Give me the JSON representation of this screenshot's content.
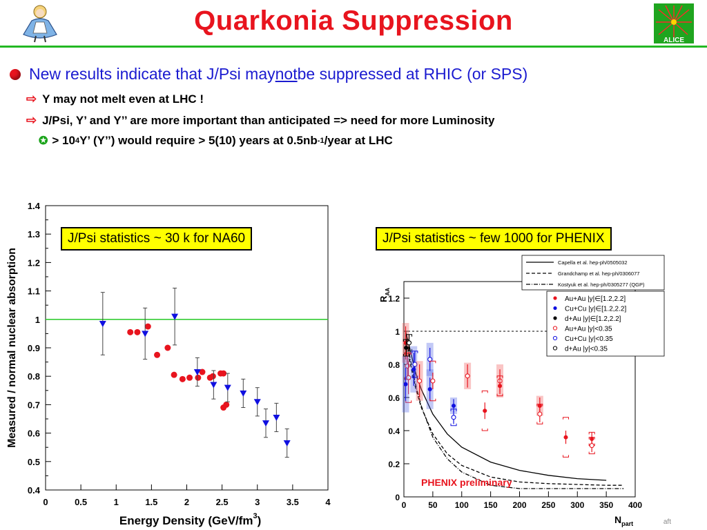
{
  "slide": {
    "title": "Quarkonia Suppression",
    "bullet_main": {
      "pre": "New results indicate that J/Psi may ",
      "emph": "not",
      "post": " be suppressed at RHIC (or SPS)"
    },
    "sub1": "Y may not melt even at LHC !",
    "sub2": "J/Psi, Y’ and Y’’ are more important than anticipated => need for more Luminosity",
    "sub3": {
      "pre": "> 10",
      "sup": "4",
      "mid": " Y’ (Y’’) would require > 5(10) years at 0.5nb",
      "sup2": "-1",
      "post": "/year at LHC"
    },
    "box_left": "J/Psi statistics ~ 30 k for NA60",
    "box_right": "J/Psi statistics ~ few 1000 for PHENIX",
    "footer": "aft",
    "logo_left_icon": "alice-girl-icon",
    "logo_right_icon": "alice-experiment-logo-icon",
    "logo_right_text": "ALICE"
  },
  "colors": {
    "title": "#e8141e",
    "rule": "#22b822",
    "bullet_text": "#1b1bd0",
    "red": "#e8141e",
    "blue": "#1010e0",
    "box": "#ffff00",
    "green_line": "#33cc33"
  },
  "chart_data": [
    {
      "type": "scatter",
      "title": "",
      "xlabel": "Energy Density (GeV/fm",
      "xlabel_sup": "3",
      "xlabel_close": ")",
      "ylabel": "Measured / normal nuclear absorption",
      "xlim": [
        0,
        4
      ],
      "ylim": [
        0.4,
        1.4
      ],
      "xticks": [
        0,
        0.5,
        1,
        1.5,
        2,
        2.5,
        3,
        3.5,
        4
      ],
      "xtick_labels": [
        "0",
        "0.5",
        "1",
        "1.5",
        "2",
        "2.5",
        "3",
        "3.5",
        "4"
      ],
      "yticks": [
        0.4,
        0.5,
        0.6,
        0.7,
        0.8,
        0.9,
        1,
        1.1,
        1.2,
        1.3,
        1.4
      ],
      "ytick_labels": [
        "0.4",
        "0.5",
        "0.6",
        "0.7",
        "0.8",
        "0.9",
        "1",
        "1.1",
        "1.2",
        "1.3",
        "1.4"
      ],
      "reference_line": 1.0,
      "series": [
        {
          "marker": "circle",
          "color": "#e8141e",
          "points": [
            {
              "x": 1.2,
              "y": 0.955,
              "err": 0
            },
            {
              "x": 1.3,
              "y": 0.955,
              "err": 0
            },
            {
              "x": 1.45,
              "y": 0.975,
              "err": 0
            },
            {
              "x": 1.58,
              "y": 0.875,
              "err": 0
            },
            {
              "x": 1.73,
              "y": 0.9,
              "err": 0
            },
            {
              "x": 1.82,
              "y": 0.805,
              "err": 0
            },
            {
              "x": 1.94,
              "y": 0.79,
              "err": 0
            },
            {
              "x": 2.04,
              "y": 0.795,
              "err": 0
            },
            {
              "x": 2.16,
              "y": 0.795,
              "err": 0
            },
            {
              "x": 2.22,
              "y": 0.815,
              "err": 0
            },
            {
              "x": 2.33,
              "y": 0.795,
              "err": 0
            },
            {
              "x": 2.37,
              "y": 0.8,
              "err": 0
            },
            {
              "x": 2.48,
              "y": 0.81,
              "err": 0
            },
            {
              "x": 2.52,
              "y": 0.81,
              "err": 0
            },
            {
              "x": 2.52,
              "y": 0.69,
              "err": 0
            },
            {
              "x": 2.56,
              "y": 0.7,
              "err": 0
            }
          ]
        },
        {
          "marker": "triangle-down",
          "color": "#1010e0",
          "points": [
            {
              "x": 0.81,
              "y": 0.985,
              "err": 0.11
            },
            {
              "x": 1.41,
              "y": 0.95,
              "err": 0.09
            },
            {
              "x": 1.83,
              "y": 1.01,
              "err": 0.1
            },
            {
              "x": 2.15,
              "y": 0.815,
              "err": 0.05
            },
            {
              "x": 2.38,
              "y": 0.77,
              "err": 0.05
            },
            {
              "x": 2.58,
              "y": 0.76,
              "err": 0.05
            },
            {
              "x": 2.8,
              "y": 0.74,
              "err": 0.05
            },
            {
              "x": 3.0,
              "y": 0.71,
              "err": 0.05
            },
            {
              "x": 3.12,
              "y": 0.635,
              "err": 0.05
            },
            {
              "x": 3.27,
              "y": 0.655,
              "err": 0.05
            },
            {
              "x": 3.42,
              "y": 0.565,
              "err": 0.05
            }
          ]
        }
      ]
    },
    {
      "type": "scatter",
      "title": "",
      "xlabel": "N",
      "xlabel_sub": "part",
      "ylabel": "R",
      "ylabel_sub": "AA",
      "xlim": [
        0,
        400
      ],
      "ylim": [
        0,
        1.3
      ],
      "xticks": [
        0,
        50,
        100,
        150,
        200,
        250,
        300,
        350,
        400
      ],
      "xtick_labels": [
        "0",
        "50",
        "100",
        "150",
        "200",
        "250",
        "300",
        "350",
        "400"
      ],
      "yticks": [
        0,
        0.2,
        0.4,
        0.6,
        0.8,
        1,
        1.2
      ],
      "ytick_labels": [
        "0",
        "0.2",
        "0.4",
        "0.6",
        "0.8",
        "1",
        "1.2"
      ],
      "annotation": "PHENIX preliminary",
      "reference_line": 1.0,
      "legend_top": [
        {
          "style": "solid",
          "label": "Capella et al. hep-ph/0505032"
        },
        {
          "style": "dashed",
          "label": "Grandchamp et al. hep-ph/0306077"
        },
        {
          "style": "dashdot",
          "label": "Kostyuk et al. hep-ph/0305277 (QGP)"
        }
      ],
      "legend_markers": [
        {
          "marker": "filled",
          "color": "#e8141e",
          "label": "Au+Au |y|∈[1.2,2.2]"
        },
        {
          "marker": "filled",
          "color": "#1010e0",
          "label": "Cu+Cu |y|∈[1.2,2.2]"
        },
        {
          "marker": "filled",
          "color": "#000000",
          "label": "d+Au |y|∈[1.2,2.2]"
        },
        {
          "marker": "open",
          "color": "#e8141e",
          "label": "Au+Au |y|<0.35"
        },
        {
          "marker": "open",
          "color": "#1010e0",
          "label": "Cu+Cu |y|<0.35"
        },
        {
          "marker": "open",
          "color": "#000000",
          "label": "d+Au |y|<0.35"
        }
      ],
      "curves": [
        {
          "style": "solid",
          "x": [
            3,
            10,
            20,
            30,
            50,
            75,
            100,
            150,
            200,
            250,
            300,
            350
          ],
          "y": [
            1.0,
            0.9,
            0.75,
            0.65,
            0.5,
            0.38,
            0.3,
            0.21,
            0.16,
            0.13,
            0.11,
            0.1
          ]
        },
        {
          "style": "dashed",
          "x": [
            3,
            10,
            20,
            30,
            50,
            75,
            100,
            150,
            200,
            250,
            300,
            350,
            380
          ],
          "y": [
            1.0,
            0.82,
            0.66,
            0.54,
            0.38,
            0.26,
            0.19,
            0.12,
            0.09,
            0.08,
            0.075,
            0.07,
            0.07
          ]
        },
        {
          "style": "dashdot",
          "x": [
            3,
            10,
            20,
            30,
            50,
            75,
            100,
            150,
            200,
            250,
            300,
            350,
            380
          ],
          "y": [
            1.0,
            0.85,
            0.68,
            0.55,
            0.36,
            0.23,
            0.15,
            0.07,
            0.05,
            0.05,
            0.05,
            0.05,
            0.05
          ]
        }
      ],
      "points": [
        {
          "x": 3,
          "y": 0.93,
          "err": 0.1,
          "sys": 0.12,
          "color": "#e8141e",
          "open": false,
          "band": true
        },
        {
          "x": 6,
          "y": 0.79,
          "err": 0.08,
          "sys": 0.08,
          "color": "#e8141e",
          "open": true,
          "band": false
        },
        {
          "x": 8,
          "y": 0.72,
          "err": 0.1,
          "sys": 0.15,
          "color": "#e8141e",
          "open": true,
          "band": false
        },
        {
          "x": 3,
          "y": 0.68,
          "err": 0.1,
          "sys": 0.17,
          "color": "#1010e0",
          "open": false,
          "band": true
        },
        {
          "x": 4,
          "y": 0.9,
          "err": 0.05,
          "sys": 0.05,
          "color": "#000000",
          "open": false,
          "band": false
        },
        {
          "x": 9,
          "y": 0.93,
          "err": 0.05,
          "sys": 0.05,
          "color": "#000000",
          "open": true,
          "band": false
        },
        {
          "x": 17,
          "y": 0.77,
          "err": 0.1,
          "sys": 0.14,
          "color": "#1010e0",
          "open": false,
          "band": true
        },
        {
          "x": 19,
          "y": 0.8,
          "err": 0.08,
          "sys": 0.08,
          "color": "#1010e0",
          "open": true,
          "band": false
        },
        {
          "x": 27,
          "y": 0.7,
          "err": 0.1,
          "sys": 0.12,
          "color": "#e8141e",
          "open": true,
          "band": true
        },
        {
          "x": 45,
          "y": 0.65,
          "err": 0.07,
          "sys": 0.12,
          "color": "#1010e0",
          "open": false,
          "band": true
        },
        {
          "x": 45,
          "y": 0.83,
          "err": 0.07,
          "sys": 0.1,
          "color": "#1010e0",
          "open": true,
          "band": true
        },
        {
          "x": 50,
          "y": 0.7,
          "err": 0.05,
          "sys": 0.12,
          "color": "#e8141e",
          "open": true,
          "band": false
        },
        {
          "x": 86,
          "y": 0.55,
          "err": 0.04,
          "sys": 0.05,
          "color": "#1010e0",
          "open": false,
          "band": true
        },
        {
          "x": 86,
          "y": 0.48,
          "err": 0.04,
          "sys": 0.05,
          "color": "#1010e0",
          "open": true,
          "band": false
        },
        {
          "x": 110,
          "y": 0.73,
          "err": 0.07,
          "sys": 0.08,
          "color": "#e8141e",
          "open": true,
          "band": true
        },
        {
          "x": 140,
          "y": 0.52,
          "err": 0.05,
          "sys": 0.12,
          "color": "#e8141e",
          "open": false,
          "band": false
        },
        {
          "x": 166,
          "y": 0.7,
          "err": 0.07,
          "sys": 0.1,
          "color": "#e8141e",
          "open": true,
          "band": true
        },
        {
          "x": 166,
          "y": 0.67,
          "err": 0.05,
          "sys": 0.06,
          "color": "#e8141e",
          "open": false,
          "band": false
        },
        {
          "x": 235,
          "y": 0.55,
          "err": 0.05,
          "sys": 0.06,
          "color": "#e8141e",
          "open": false,
          "band": true
        },
        {
          "x": 235,
          "y": 0.5,
          "err": 0.05,
          "sys": 0.06,
          "color": "#e8141e",
          "open": true,
          "band": false
        },
        {
          "x": 280,
          "y": 0.36,
          "err": 0.04,
          "sys": 0.12,
          "color": "#e8141e",
          "open": false,
          "band": false
        },
        {
          "x": 325,
          "y": 0.35,
          "err": 0.04,
          "sys": 0.04,
          "color": "#e8141e",
          "open": false,
          "band": false
        },
        {
          "x": 325,
          "y": 0.31,
          "err": 0.04,
          "sys": 0.05,
          "color": "#e8141e",
          "open": true,
          "band": false
        }
      ]
    }
  ]
}
